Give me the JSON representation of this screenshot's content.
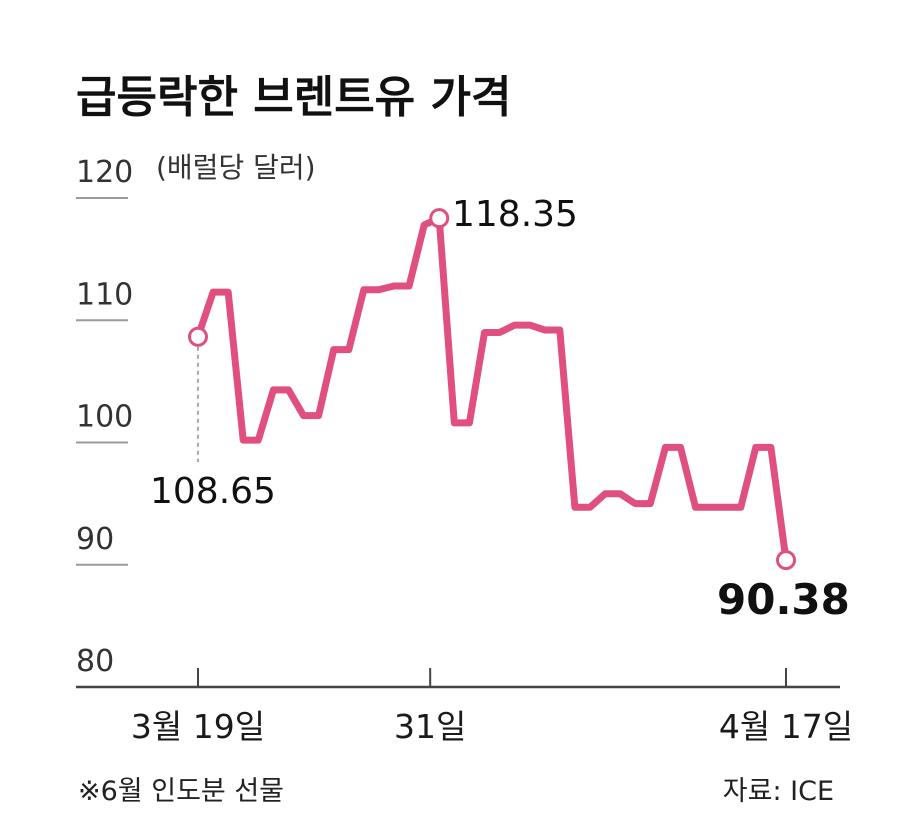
{
  "chart_data": {
    "type": "line",
    "title": "급등락한 브렌트유 가격",
    "unit": "(배럴당 달러)",
    "ylim": [
      80,
      120
    ],
    "yticks": [
      "120",
      "110",
      "100",
      "90",
      "80"
    ],
    "xtick_labels": [
      "3월 19일",
      "31일",
      "4월 17일"
    ],
    "series": [
      {
        "color": "#e0507e",
        "values": [
          108.65,
          112.3,
          112.3,
          100.2,
          100.2,
          104.3,
          104.3,
          102.2,
          102.2,
          107.6,
          107.6,
          112.5,
          112.5,
          112.8,
          112.8,
          117.8,
          118.35,
          101.6,
          101.6,
          109.0,
          109.0,
          109.6,
          109.6,
          109.2,
          109.2,
          94.7,
          94.7,
          95.8,
          95.8,
          95.0,
          95.0,
          99.6,
          99.6,
          94.7,
          94.7,
          94.7,
          94.7,
          99.6,
          99.6,
          90.38
        ]
      }
    ],
    "annotations": [
      {
        "label": "108.65",
        "value": 108.65
      },
      {
        "label": "118.35",
        "value": 118.35
      },
      {
        "label": "90.38",
        "value": 90.38
      }
    ],
    "note": "※6월 인도분 선물",
    "source": "자료: ICE"
  },
  "colors": {
    "line": "#e0507e",
    "axis": "#444444",
    "grid": "#9a9a9a"
  }
}
